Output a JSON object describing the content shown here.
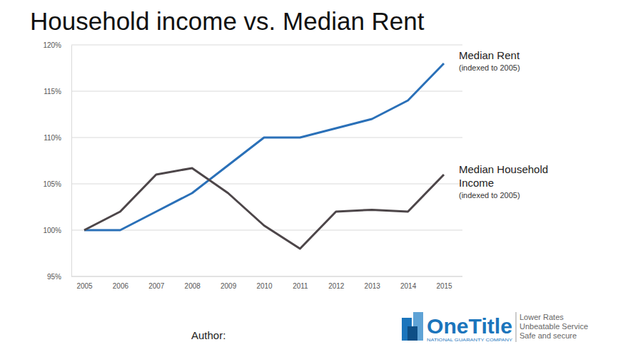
{
  "chart_data": {
    "type": "line",
    "title": "Household income vs. Median Rent",
    "categories": [
      "2005",
      "2006",
      "2007",
      "2008",
      "2009",
      "2010",
      "2011",
      "2012",
      "2013",
      "2014",
      "2015"
    ],
    "series": [
      {
        "name": "Median Rent",
        "label_note": "(indexed to 2005)",
        "color": "#2a70b8",
        "values": [
          100,
          100,
          102,
          104,
          107,
          110,
          110,
          111,
          112,
          114,
          118
        ]
      },
      {
        "name": "Median Household Income",
        "label_note": "(indexed to 2005)",
        "color": "#4d4649",
        "values": [
          100,
          102,
          106,
          106.7,
          104,
          100.5,
          98,
          102,
          102.2,
          102,
          106
        ]
      }
    ],
    "ylim": [
      95,
      120
    ],
    "yticks": [
      {
        "value": 95,
        "label": "95%"
      },
      {
        "value": 100,
        "label": "100%"
      },
      {
        "value": 105,
        "label": "105%"
      },
      {
        "value": 110,
        "label": "110%"
      },
      {
        "value": 115,
        "label": "115%"
      },
      {
        "value": 120,
        "label": "120%"
      }
    ],
    "grid": true
  },
  "footer": {
    "author": "Author:",
    "logo": {
      "name": "OneTitle",
      "company": "NATIONAL GUARANTY COMPANY",
      "taglines": [
        "Lower Rates",
        "Unbeatable Service",
        "Safe and secure"
      ]
    }
  }
}
